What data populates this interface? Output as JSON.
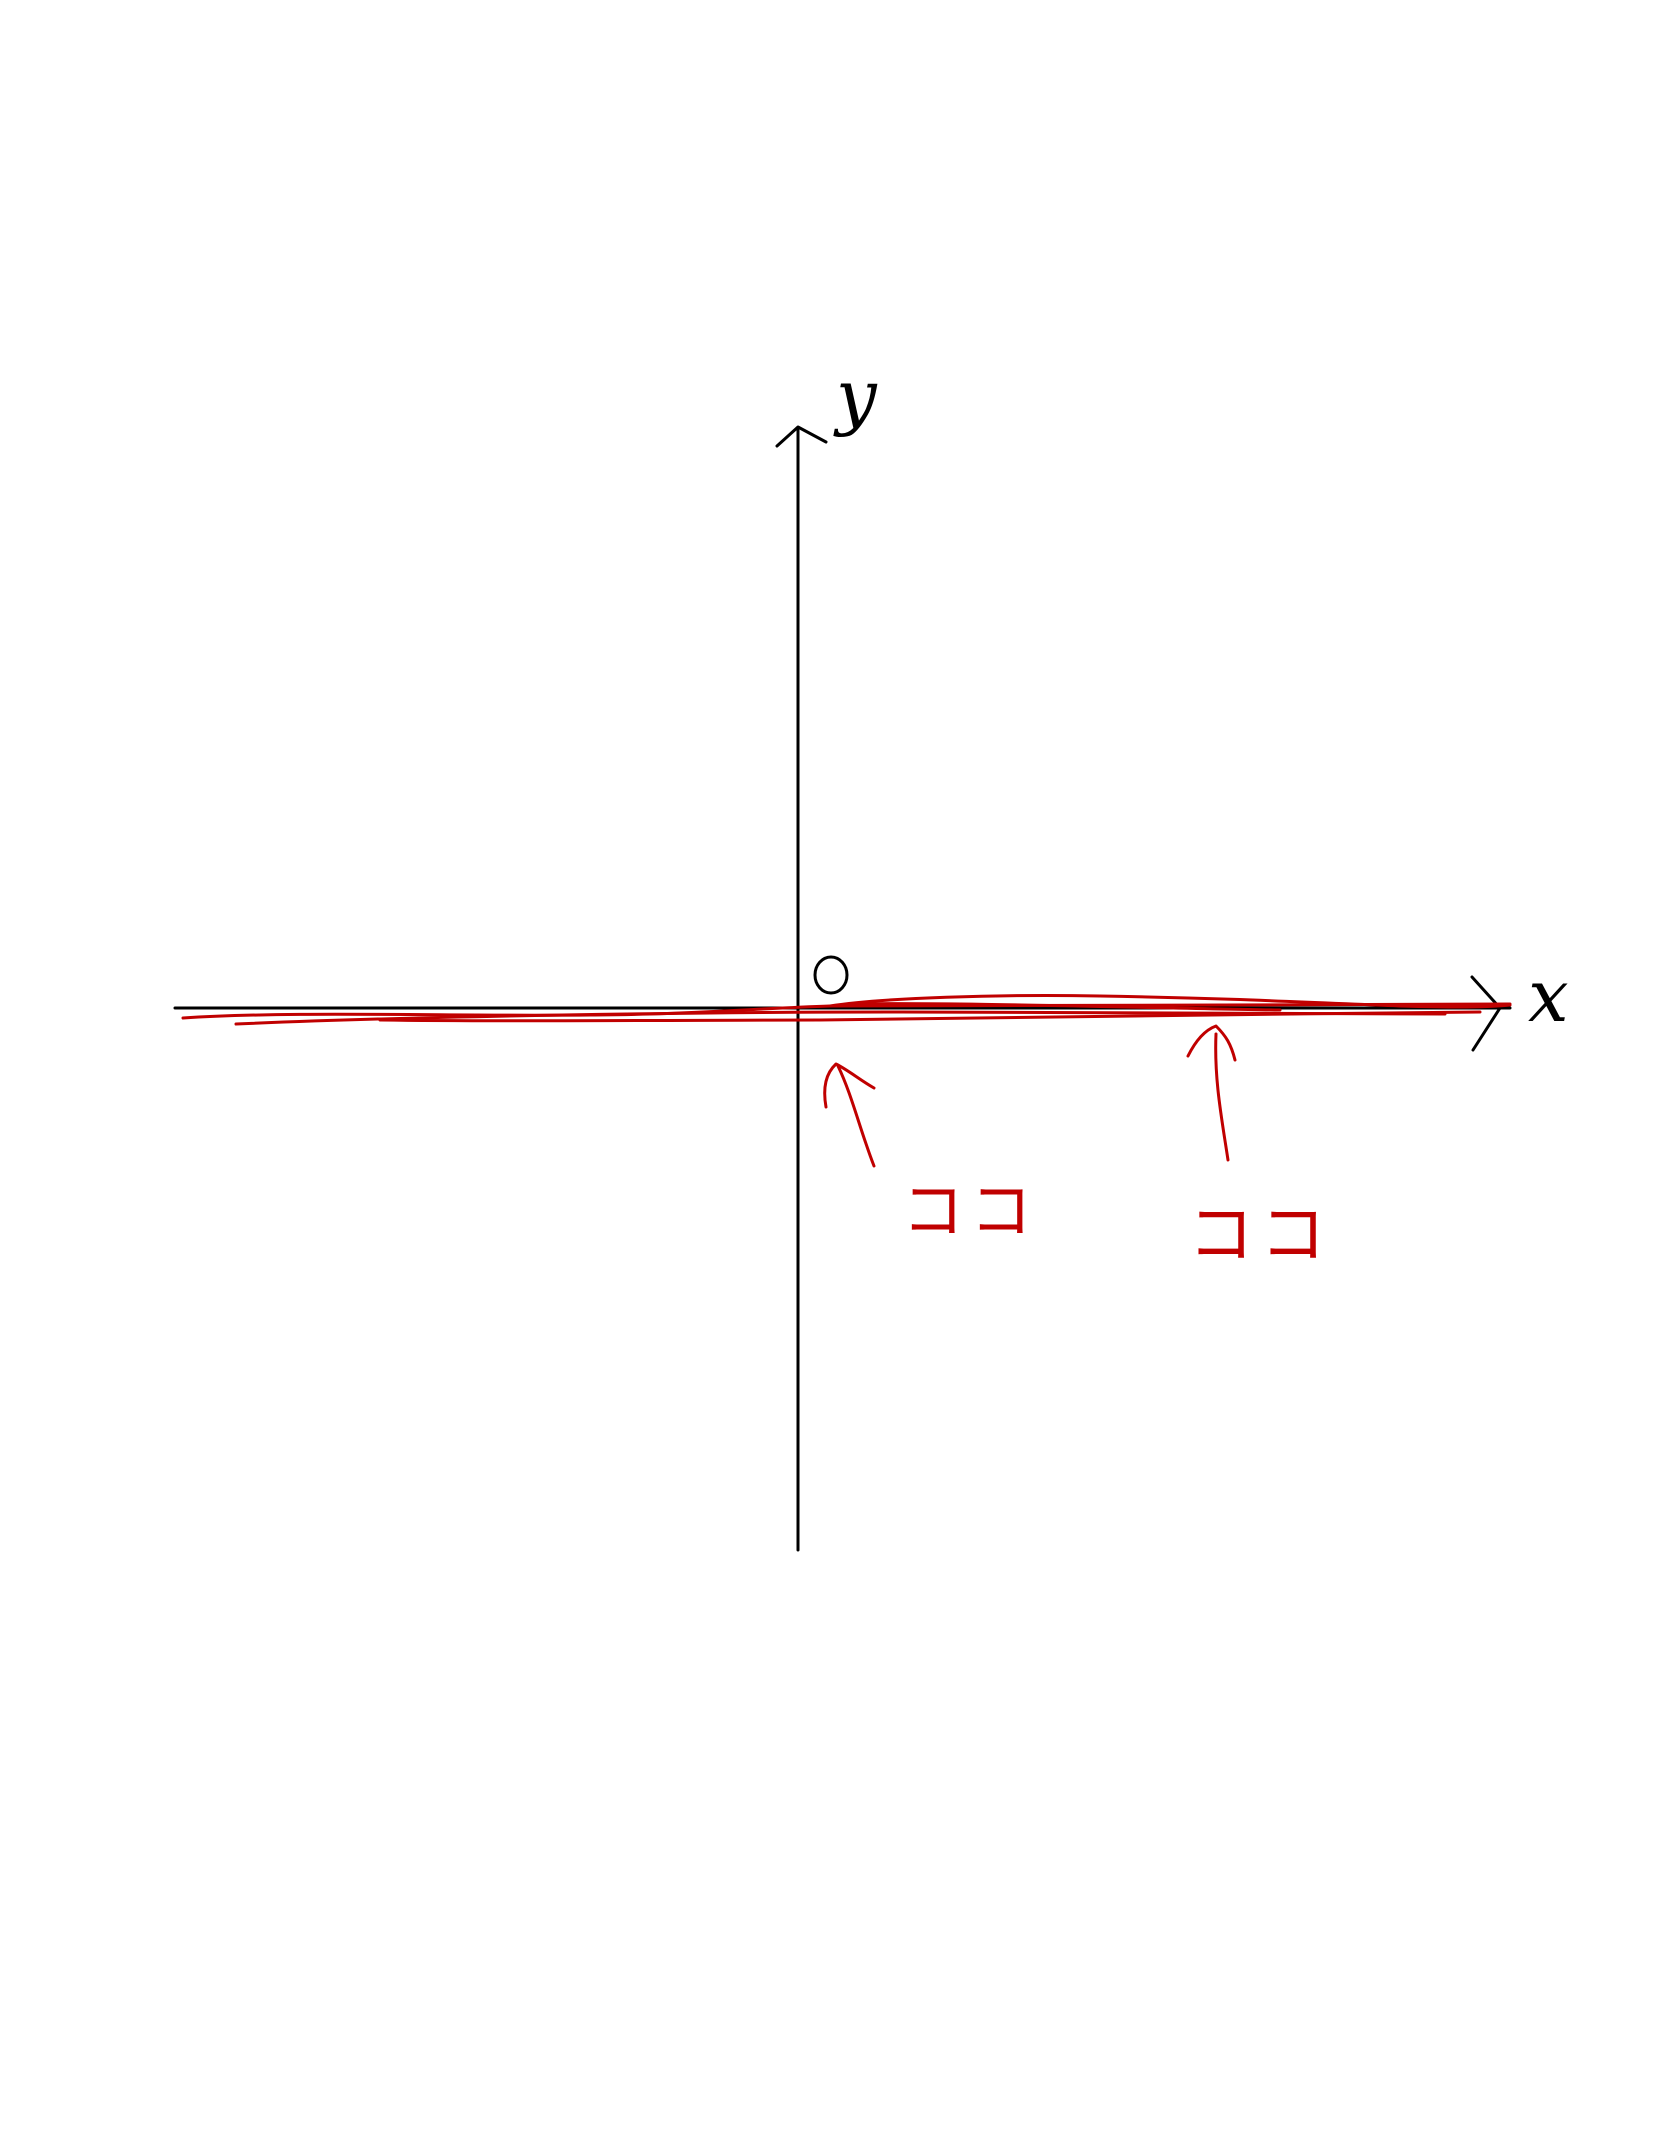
{
  "diagram": {
    "axes": {
      "x_label": "x",
      "y_label": "y",
      "origin_label": "O"
    },
    "annotations": [
      {
        "text": "ココ"
      },
      {
        "text": "ココ"
      }
    ],
    "colors": {
      "axes_ink": "#000000",
      "annotation_ink": "#c00000"
    }
  }
}
